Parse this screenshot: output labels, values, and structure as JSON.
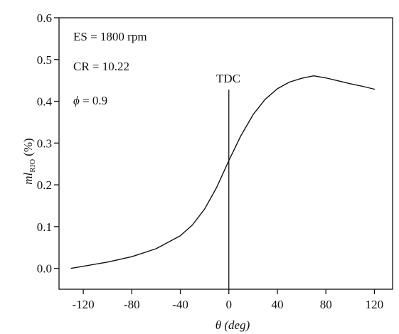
{
  "chart_data": {
    "type": "line",
    "xlabel": "θ (deg)",
    "ylabel": {
      "var": "ml",
      "sub": "RIO",
      "unit": "(%)"
    },
    "xlim": [
      -140,
      135
    ],
    "ylim": [
      -0.05,
      0.6
    ],
    "xticks": [
      -120,
      -80,
      -40,
      0,
      40,
      80,
      120
    ],
    "yticks": [
      0.0,
      0.1,
      0.2,
      0.3,
      0.4,
      0.5,
      0.6
    ],
    "ytick_labels": [
      "0.0",
      "0.1",
      "0.2",
      "0.3",
      "0.4",
      "0.5",
      "0.6"
    ],
    "grid": false,
    "annotations": {
      "es": "ES = 1800 rpm",
      "cr": "CR = 10.22",
      "phi_symbol": "ϕ",
      "phi_value": "=  0.9",
      "tdc": "TDC"
    },
    "tdc_line": {
      "x": 0,
      "y_top": 0.428
    },
    "series": [
      {
        "x": [
          -130,
          -120,
          -100,
          -80,
          -60,
          -40,
          -30,
          -20,
          -10,
          0,
          10,
          20,
          30,
          40,
          50,
          60,
          70,
          80,
          90,
          100,
          110,
          120
        ],
        "y": [
          0.0,
          0.005,
          0.015,
          0.028,
          0.047,
          0.078,
          0.104,
          0.142,
          0.194,
          0.258,
          0.318,
          0.368,
          0.405,
          0.43,
          0.446,
          0.455,
          0.461,
          0.456,
          0.449,
          0.442,
          0.436,
          0.429
        ]
      }
    ],
    "colors": {
      "axis": "#111111",
      "line": "#111111",
      "background": "#ffffff"
    }
  }
}
